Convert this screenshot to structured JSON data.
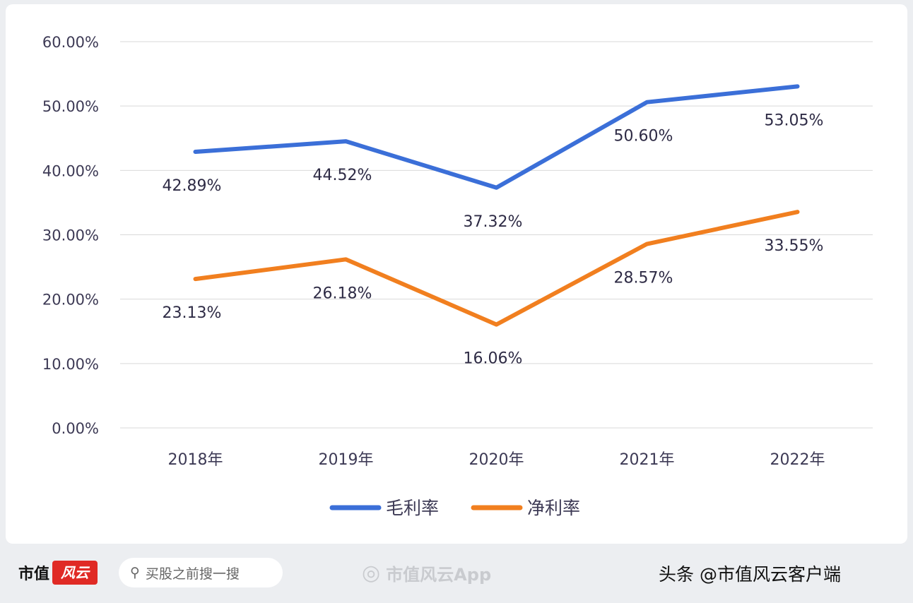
{
  "chart_data": {
    "type": "line",
    "categories": [
      "2018年",
      "2019年",
      "2020年",
      "2021年",
      "2022年"
    ],
    "series": [
      {
        "name": "毛利率",
        "values": [
          42.89,
          44.52,
          37.32,
          50.6,
          53.05
        ],
        "labels": [
          "42.89%",
          "44.52%",
          "37.32%",
          "50.60%",
          "53.05%"
        ],
        "color": "#3b6fd8"
      },
      {
        "name": "净利率",
        "values": [
          23.13,
          26.18,
          16.06,
          28.57,
          33.55
        ],
        "labels": [
          "23.13%",
          "26.18%",
          "16.06%",
          "28.57%",
          "33.55%"
        ],
        "color": "#f17f1f"
      }
    ],
    "yticks": [
      "0.00%",
      "10.00%",
      "20.00%",
      "30.00%",
      "40.00%",
      "50.00%",
      "60.00%"
    ],
    "ylim": [
      0,
      60
    ],
    "grid": true,
    "legend": "bottom"
  },
  "footer": {
    "brand": "市值",
    "brand_badge": "风云",
    "search_placeholder": "买股之前搜一搜",
    "weibo_label": "市值风云App",
    "toutiao_label": "头条 @市值风云客户端"
  }
}
